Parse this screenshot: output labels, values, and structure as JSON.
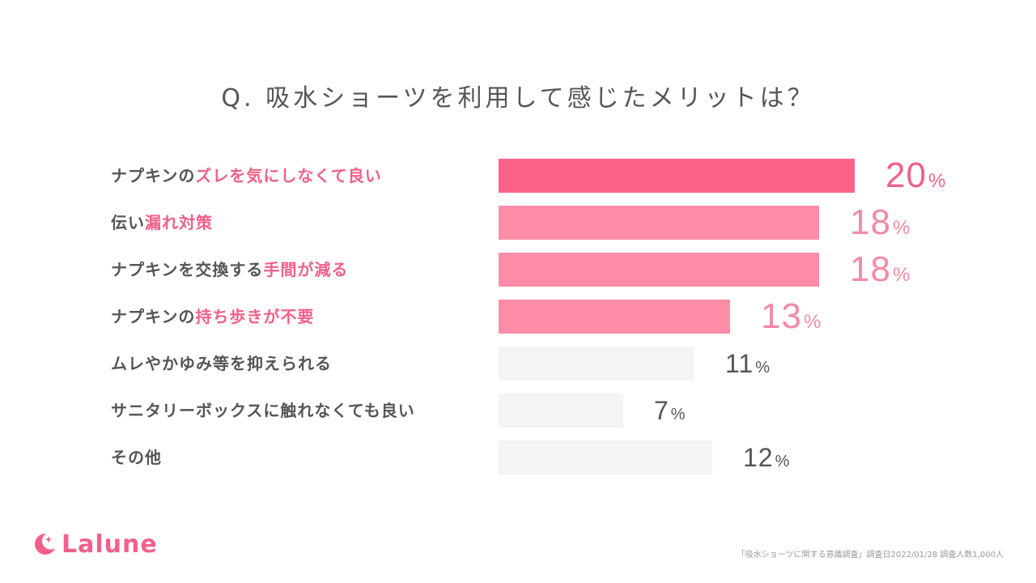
{
  "title": "Q. 吸水ショーツを利用して感じたメリットは？",
  "chart_data": {
    "type": "bar",
    "orientation": "horizontal",
    "title": "Q. 吸水ショーツを利用して感じたメリットは？",
    "categories": [
      "ナプキンのズレを気にしなくて良い",
      "伝い漏れ対策",
      "ナプキンを交換する手間が減る",
      "ナプキンの持ち歩きが不要",
      "ムレやかゆみ等を抑えられる",
      "サニタリーボックスに触れなくても良い",
      "その他"
    ],
    "values": [
      20,
      18,
      18,
      13,
      11,
      7,
      12
    ],
    "unit": "%",
    "xlim": [
      0,
      20
    ],
    "grid": false,
    "colors": {
      "top": "#fc6288",
      "highlight": "#fd8ca8",
      "other": "#f4f4f4",
      "accent_text": "#f2608a",
      "top_text": "#f2608a",
      "highlight_text": "#f48aa6",
      "other_text": "#555555"
    }
  },
  "labels": [
    {
      "plain": "ナプキンの",
      "highlight": "ズレを気にしなくて良い"
    },
    {
      "plain": "伝い",
      "highlight": "漏れ対策"
    },
    {
      "plain": "ナプキンを交換する",
      "highlight": "手間が減る"
    },
    {
      "plain": "ナプキンの",
      "highlight": "持ち歩きが不要"
    },
    {
      "plain": "ムレやかゆみ等を抑えられる",
      "highlight": ""
    },
    {
      "plain": "サニタリーボックスに触れなくても良い",
      "highlight": ""
    },
    {
      "plain": "その他",
      "highlight": ""
    }
  ],
  "percent_symbol": "%",
  "logo": {
    "text": "Lalune",
    "icon": "crescent-moon-star-icon"
  },
  "footnote": "「吸水ショーツに関する意識調査」調査日2022/01/28 調査人数1,000人"
}
